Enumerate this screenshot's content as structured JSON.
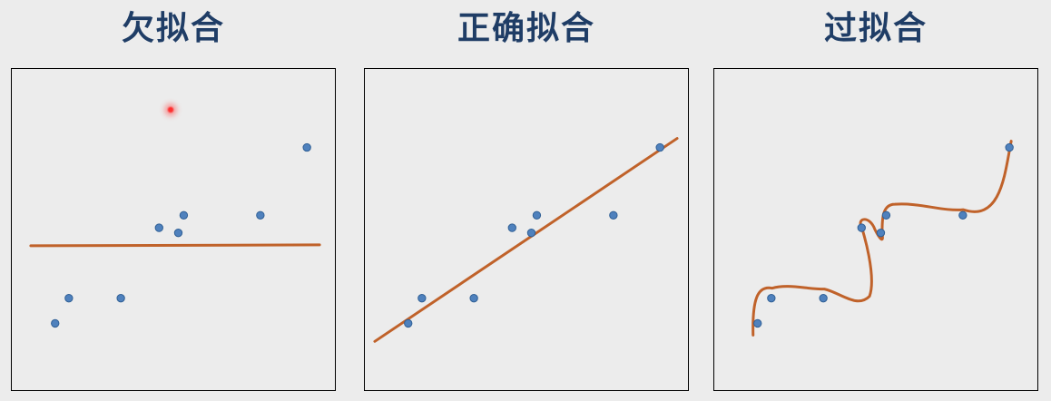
{
  "colors": {
    "title": "#1f3d66",
    "point_fill": "#4f81bd",
    "point_stroke": "#2f5f95",
    "fit_curve": "#c0622a",
    "background": "#ececec",
    "border": "#000000"
  },
  "panels": [
    {
      "title": "欠拟合",
      "fit_type": "constant-line"
    },
    {
      "title": "正确拟合",
      "fit_type": "straight-line"
    },
    {
      "title": "过拟合",
      "fit_type": "wiggly-curve"
    }
  ],
  "points": [
    [
      1,
      1.0
    ],
    [
      1.5,
      2.0
    ],
    [
      3.4,
      2.0
    ],
    [
      4.8,
      4.8
    ],
    [
      5.5,
      4.6
    ],
    [
      5.7,
      5.3
    ],
    [
      8.5,
      5.3
    ],
    [
      10.2,
      8.0
    ]
  ]
}
